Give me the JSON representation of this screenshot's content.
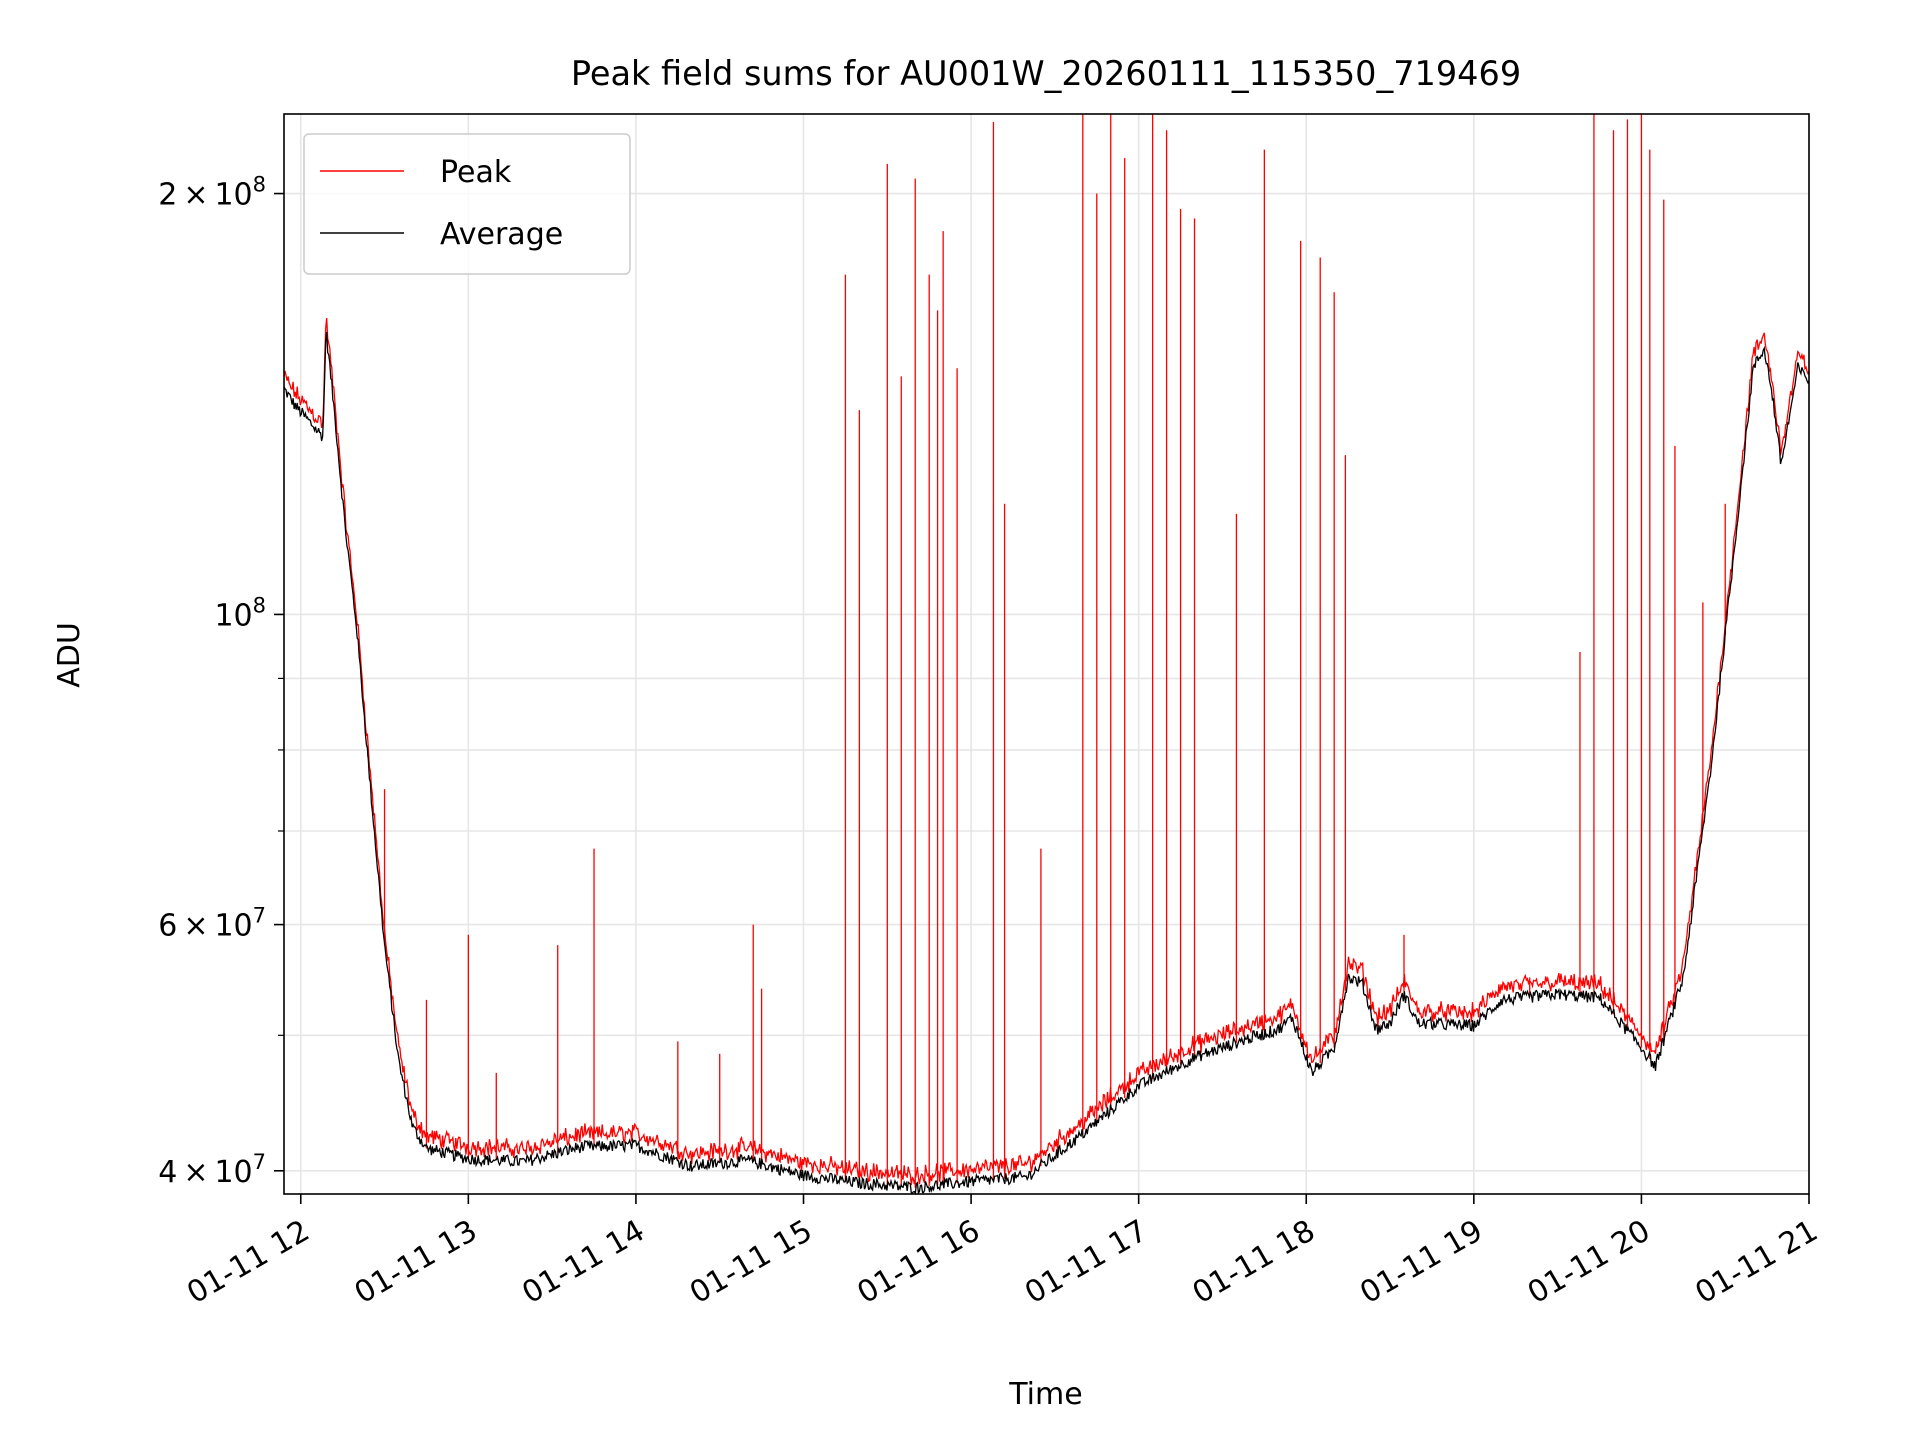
{
  "chart_data": {
    "type": "line",
    "title": "Peak field sums for AU001W_20260111_115350_719469",
    "xlabel": "Time",
    "ylabel": "ADU",
    "yscale": "log",
    "xlim": [
      "2026-01-11 11:54",
      "2026-01-11 21:00"
    ],
    "ylim": [
      38500000,
      228000000
    ],
    "grid": true,
    "legend_position": "top-left",
    "x_ticks": [
      {
        "value": "2026-01-11 12:00",
        "label": "01-11 12"
      },
      {
        "value": "2026-01-11 13:00",
        "label": "01-11 13"
      },
      {
        "value": "2026-01-11 14:00",
        "label": "01-11 14"
      },
      {
        "value": "2026-01-11 15:00",
        "label": "01-11 15"
      },
      {
        "value": "2026-01-11 16:00",
        "label": "01-11 16"
      },
      {
        "value": "2026-01-11 17:00",
        "label": "01-11 17"
      },
      {
        "value": "2026-01-11 18:00",
        "label": "01-11 18"
      },
      {
        "value": "2026-01-11 19:00",
        "label": "01-11 19"
      },
      {
        "value": "2026-01-11 20:00",
        "label": "01-11 20"
      },
      {
        "value": "2026-01-11 21:00",
        "label": "01-11 21"
      }
    ],
    "y_major_ticks": [
      {
        "value": 40000000,
        "mantissa": "4",
        "exponent": "7"
      },
      {
        "value": 60000000,
        "mantissa": "6",
        "exponent": "7"
      },
      {
        "value": 100000000,
        "mantissa": "",
        "exponent": "8"
      },
      {
        "value": 200000000,
        "mantissa": "2",
        "exponent": "8"
      }
    ],
    "y_minor_ticks": [
      50000000,
      70000000,
      80000000,
      90000000
    ],
    "series": [
      {
        "name": "Peak",
        "color": "#ff0000",
        "role": "peak"
      },
      {
        "name": "Average",
        "color": "#000000",
        "role": "average"
      }
    ],
    "average_profile": [
      [
        "2026-01-11 11:54",
        145000000
      ],
      [
        "2026-01-11 11:58",
        141000000
      ],
      [
        "2026-01-11 12:05",
        136000000
      ],
      [
        "2026-01-11 12:08",
        134000000
      ],
      [
        "2026-01-11 12:09",
        160000000
      ],
      [
        "2026-01-11 12:12",
        140000000
      ],
      [
        "2026-01-11 12:16",
        115000000
      ],
      [
        "2026-01-11 12:20",
        98000000
      ],
      [
        "2026-01-11 12:25",
        75000000
      ],
      [
        "2026-01-11 12:30",
        58000000
      ],
      [
        "2026-01-11 12:35",
        48000000
      ],
      [
        "2026-01-11 12:40",
        43000000
      ],
      [
        "2026-01-11 12:45",
        41500000
      ],
      [
        "2026-01-11 13:00",
        40800000
      ],
      [
        "2026-01-11 13:20",
        40600000
      ],
      [
        "2026-01-11 13:40",
        41600000
      ],
      [
        "2026-01-11 14:00",
        41700000
      ],
      [
        "2026-01-11 14:20",
        40300000
      ],
      [
        "2026-01-11 14:40",
        40700000
      ],
      [
        "2026-01-11 15:00",
        39700000
      ],
      [
        "2026-01-11 15:20",
        39200000
      ],
      [
        "2026-01-11 15:40",
        38900000
      ],
      [
        "2026-01-11 16:00",
        39300000
      ],
      [
        "2026-01-11 16:20",
        39600000
      ],
      [
        "2026-01-11 16:40",
        42500000
      ],
      [
        "2026-01-11 17:00",
        46000000
      ],
      [
        "2026-01-11 17:20",
        48200000
      ],
      [
        "2026-01-11 17:40",
        49800000
      ],
      [
        "2026-01-11 17:50",
        50500000
      ],
      [
        "2026-01-11 17:55",
        51500000
      ],
      [
        "2026-01-11 18:02",
        47000000
      ],
      [
        "2026-01-11 18:10",
        49000000
      ],
      [
        "2026-01-11 18:15",
        55000000
      ],
      [
        "2026-01-11 18:20",
        54500000
      ],
      [
        "2026-01-11 18:25",
        50500000
      ],
      [
        "2026-01-11 18:30",
        51000000
      ],
      [
        "2026-01-11 18:35",
        53500000
      ],
      [
        "2026-01-11 18:40",
        51000000
      ],
      [
        "2026-01-11 19:00",
        50800000
      ],
      [
        "2026-01-11 19:10",
        53000000
      ],
      [
        "2026-01-11 19:30",
        53500000
      ],
      [
        "2026-01-11 19:45",
        53200000
      ],
      [
        "2026-01-11 20:00",
        49000000
      ],
      [
        "2026-01-11 20:05",
        47500000
      ],
      [
        "2026-01-11 20:15",
        55000000
      ],
      [
        "2026-01-11 20:25",
        78000000
      ],
      [
        "2026-01-11 20:33",
        110000000
      ],
      [
        "2026-01-11 20:40",
        150000000
      ],
      [
        "2026-01-11 20:44",
        155000000
      ],
      [
        "2026-01-11 20:47",
        143000000
      ],
      [
        "2026-01-11 20:50",
        128000000
      ],
      [
        "2026-01-11 20:56",
        150000000
      ],
      [
        "2026-01-11 21:00",
        147000000
      ]
    ],
    "peak_spikes": [
      [
        "2026-01-11 12:24",
        80000000
      ],
      [
        "2026-01-11 12:30",
        75000000
      ],
      [
        "2026-01-11 12:45",
        53000000
      ],
      [
        "2026-01-11 13:00",
        59000000
      ],
      [
        "2026-01-11 13:10",
        47000000
      ],
      [
        "2026-01-11 13:32",
        58000000
      ],
      [
        "2026-01-11 13:45",
        68000000
      ],
      [
        "2026-01-11 14:15",
        49500000
      ],
      [
        "2026-01-11 14:30",
        48500000
      ],
      [
        "2026-01-11 14:42",
        60000000
      ],
      [
        "2026-01-11 14:45",
        54000000
      ],
      [
        "2026-01-11 15:15",
        175000000
      ],
      [
        "2026-01-11 15:20",
        140000000
      ],
      [
        "2026-01-11 15:30",
        210000000
      ],
      [
        "2026-01-11 15:35",
        148000000
      ],
      [
        "2026-01-11 15:40",
        205000000
      ],
      [
        "2026-01-11 15:45",
        175000000
      ],
      [
        "2026-01-11 15:48",
        165000000
      ],
      [
        "2026-01-11 15:50",
        188000000
      ],
      [
        "2026-01-11 15:55",
        150000000
      ],
      [
        "2026-01-11 16:08",
        225000000
      ],
      [
        "2026-01-11 16:12",
        120000000
      ],
      [
        "2026-01-11 16:25",
        68000000
      ],
      [
        "2026-01-11 16:40",
        228000000
      ],
      [
        "2026-01-11 16:45",
        200000000
      ],
      [
        "2026-01-11 16:50",
        228000000
      ],
      [
        "2026-01-11 16:55",
        212000000
      ],
      [
        "2026-01-11 17:05",
        228000000
      ],
      [
        "2026-01-11 17:10",
        222000000
      ],
      [
        "2026-01-11 17:15",
        195000000
      ],
      [
        "2026-01-11 17:20",
        192000000
      ],
      [
        "2026-01-11 17:35",
        118000000
      ],
      [
        "2026-01-11 17:45",
        215000000
      ],
      [
        "2026-01-11 17:58",
        185000000
      ],
      [
        "2026-01-11 18:05",
        180000000
      ],
      [
        "2026-01-11 18:10",
        170000000
      ],
      [
        "2026-01-11 18:14",
        130000000
      ],
      [
        "2026-01-11 18:35",
        59000000
      ],
      [
        "2026-01-11 19:20",
        55000000
      ],
      [
        "2026-01-11 19:38",
        94000000
      ],
      [
        "2026-01-11 19:43",
        228000000
      ],
      [
        "2026-01-11 19:50",
        222000000
      ],
      [
        "2026-01-11 19:55",
        226000000
      ],
      [
        "2026-01-11 20:00",
        228000000
      ],
      [
        "2026-01-11 20:03",
        215000000
      ],
      [
        "2026-01-11 20:08",
        198000000
      ],
      [
        "2026-01-11 20:12",
        132000000
      ],
      [
        "2026-01-11 20:22",
        102000000
      ],
      [
        "2026-01-11 20:30",
        120000000
      ]
    ]
  },
  "legend": {
    "peak_label": "Peak",
    "average_label": "Average"
  }
}
